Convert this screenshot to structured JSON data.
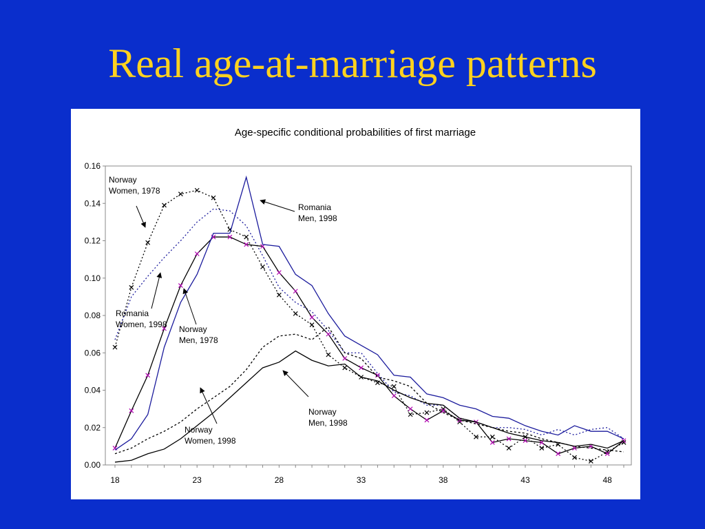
{
  "slide": {
    "title": "Real age-at-marriage patterns"
  },
  "colors": {
    "background": "#0a2ecc",
    "title": "#ffd21f",
    "navy": "#1a1a9c",
    "marker_magenta": "#b000b0"
  },
  "chart_data": {
    "type": "line",
    "title": "Age-specific conditional probabilities of first marriage",
    "xlabel": "",
    "ylabel": "",
    "xlim": [
      18,
      49
    ],
    "ylim": [
      0,
      0.16
    ],
    "x_ticks": [
      18,
      23,
      28,
      33,
      38,
      43,
      48
    ],
    "y_ticks": [
      "0.00",
      "0.02",
      "0.04",
      "0.06",
      "0.08",
      "0.10",
      "0.12",
      "0.14",
      "0.16"
    ],
    "grid": false,
    "x": [
      18,
      19,
      20,
      21,
      22,
      23,
      24,
      25,
      26,
      27,
      28,
      29,
      30,
      31,
      32,
      33,
      34,
      35,
      36,
      37,
      38,
      39,
      40,
      41,
      42,
      43,
      44,
      45,
      46,
      47,
      48,
      49
    ],
    "series": [
      {
        "name": "Norway Women, 1978",
        "style": "dotted-black-x",
        "values": [
          0.063,
          0.095,
          0.119,
          0.139,
          0.145,
          0.147,
          0.143,
          0.126,
          0.122,
          0.106,
          0.091,
          0.081,
          0.075,
          0.059,
          0.052,
          0.047,
          0.044,
          0.042,
          0.027,
          0.028,
          0.03,
          0.023,
          0.015,
          0.015,
          0.009,
          0.015,
          0.009,
          0.011,
          0.004,
          0.002,
          0.007,
          0.012
        ]
      },
      {
        "name": "Romania Women, 1998",
        "style": "dotted-navy",
        "values": [
          0.067,
          0.09,
          0.101,
          0.111,
          0.12,
          0.13,
          0.137,
          0.136,
          0.128,
          0.112,
          0.095,
          0.087,
          0.082,
          0.072,
          0.06,
          0.06,
          0.049,
          0.039,
          0.037,
          0.032,
          0.032,
          0.025,
          0.023,
          0.02,
          0.02,
          0.019,
          0.016,
          0.019,
          0.016,
          0.019,
          0.02,
          0.014
        ]
      },
      {
        "name": "Norway Men, 1978",
        "style": "solid-black-magenta-x",
        "values": [
          0.009,
          0.029,
          0.048,
          0.073,
          0.096,
          0.113,
          0.122,
          0.122,
          0.118,
          0.117,
          0.103,
          0.093,
          0.079,
          0.07,
          0.057,
          0.052,
          0.048,
          0.037,
          0.03,
          0.024,
          0.029,
          0.024,
          0.023,
          0.012,
          0.014,
          0.013,
          0.012,
          0.006,
          0.009,
          0.01,
          0.006,
          0.013
        ]
      },
      {
        "name": "Romania Men, 1998",
        "style": "solid-navy",
        "values": [
          0.008,
          0.014,
          0.027,
          0.063,
          0.087,
          0.102,
          0.124,
          0.124,
          0.154,
          0.118,
          0.117,
          0.102,
          0.096,
          0.081,
          0.069,
          0.064,
          0.059,
          0.048,
          0.047,
          0.038,
          0.036,
          0.032,
          0.03,
          0.026,
          0.025,
          0.021,
          0.018,
          0.016,
          0.021,
          0.018,
          0.018,
          0.014
        ]
      },
      {
        "name": "Norway Women, 1998",
        "style": "dashed-black",
        "values": [
          0.006,
          0.009,
          0.014,
          0.018,
          0.023,
          0.03,
          0.036,
          0.042,
          0.051,
          0.063,
          0.069,
          0.07,
          0.067,
          0.074,
          0.06,
          0.057,
          0.047,
          0.045,
          0.042,
          0.033,
          0.028,
          0.024,
          0.022,
          0.02,
          0.018,
          0.017,
          0.014,
          0.012,
          0.01,
          0.009,
          0.008,
          0.007
        ]
      },
      {
        "name": "Norway Men, 1998",
        "style": "solid-black",
        "values": [
          0.0015,
          0.0025,
          0.006,
          0.0085,
          0.014,
          0.021,
          0.028,
          0.036,
          0.044,
          0.052,
          0.055,
          0.061,
          0.056,
          0.053,
          0.054,
          0.047,
          0.045,
          0.04,
          0.036,
          0.033,
          0.032,
          0.025,
          0.023,
          0.02,
          0.017,
          0.015,
          0.013,
          0.012,
          0.01,
          0.011,
          0.009,
          0.013
        ]
      }
    ],
    "annotations": [
      {
        "lines": [
          "Norway",
          "Women, 1978"
        ],
        "series": "Norway Women, 1978"
      },
      {
        "lines": [
          "Romania",
          "Men, 1998"
        ],
        "series": "Romania Men, 1998"
      },
      {
        "lines": [
          "Romania",
          "Women, 1998"
        ],
        "series": "Romania Women, 1998"
      },
      {
        "lines": [
          "Norway",
          "Men, 1978"
        ],
        "series": "Norway Men, 1978"
      },
      {
        "lines": [
          "Norway",
          "Men, 1998"
        ],
        "series": "Norway Men, 1998"
      },
      {
        "lines": [
          "Norway",
          "Women, 1998"
        ],
        "series": "Norway Women, 1998"
      }
    ]
  }
}
